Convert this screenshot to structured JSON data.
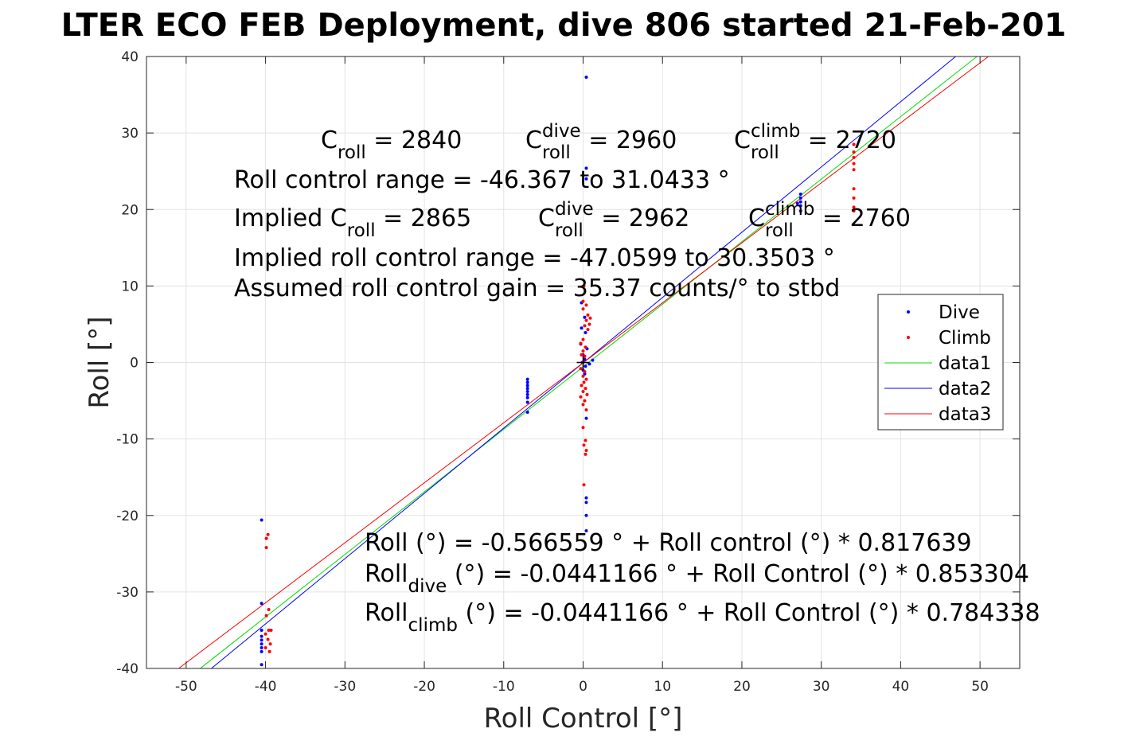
{
  "chart_data": {
    "type": "scatter",
    "title": "LTER ECO FEB Deployment, dive 806 started 21-Feb-201",
    "xlabel": "Roll Control [°]",
    "ylabel": "Roll [°]",
    "xlim": [
      -55,
      55
    ],
    "ylim": [
      -40,
      40
    ],
    "xticks": [
      -50,
      -40,
      -30,
      -20,
      -10,
      0,
      10,
      20,
      30,
      40,
      50
    ],
    "yticks": [
      -40,
      -30,
      -20,
      -10,
      0,
      10,
      20,
      30,
      40
    ],
    "grid": true,
    "legend_position": "right",
    "series": [
      {
        "name": "Dive",
        "kind": "points",
        "color": "#0000ff",
        "points": [
          [
            -40.5,
            -20.6
          ],
          [
            -40.5,
            -31.5
          ],
          [
            -40.5,
            -35.0
          ],
          [
            -40.5,
            -35.8
          ],
          [
            -40.5,
            -36.3
          ],
          [
            -40.5,
            -36.8
          ],
          [
            -40.5,
            -37.3
          ],
          [
            -40.5,
            -37.8
          ],
          [
            -40.5,
            -39.5
          ],
          [
            -7.0,
            -2.2
          ],
          [
            -7.0,
            -2.6
          ],
          [
            -7.0,
            -3.0
          ],
          [
            -7.0,
            -3.4
          ],
          [
            -7.0,
            -3.8
          ],
          [
            -7.0,
            -4.2
          ],
          [
            -7.0,
            -4.6
          ],
          [
            -7.0,
            -5.2
          ],
          [
            -7.0,
            -6.5
          ],
          [
            0.4,
            37.3
          ],
          [
            0.4,
            25.4
          ],
          [
            0.4,
            24.0
          ],
          [
            -0.2,
            7.8
          ],
          [
            0.2,
            5.9
          ],
          [
            -0.2,
            4.5
          ],
          [
            0.3,
            3.9
          ],
          [
            -0.3,
            2.4
          ],
          [
            0.5,
            1.8
          ],
          [
            0.0,
            1.0
          ],
          [
            0.2,
            0.4
          ],
          [
            -0.1,
            0.0
          ],
          [
            0.3,
            -0.5
          ],
          [
            0.0,
            -1.0
          ],
          [
            0.2,
            -1.5
          ],
          [
            0.4,
            -7.3
          ],
          [
            0.4,
            -17.7
          ],
          [
            0.4,
            -18.3
          ],
          [
            0.4,
            -20.0
          ],
          [
            0.4,
            -22.0
          ],
          [
            1.2,
            0.3
          ],
          [
            0.8,
            -0.2
          ],
          [
            27.4,
            22.0
          ],
          [
            27.4,
            21.5
          ],
          [
            27.4,
            21.0
          ],
          [
            27.0,
            20.8
          ],
          [
            27.4,
            20.5
          ],
          [
            27.4,
            19.8
          ]
        ]
      },
      {
        "name": "Climb",
        "kind": "points",
        "color": "#ff0000",
        "points": [
          [
            -39.7,
            -22.5
          ],
          [
            -39.9,
            -23.0
          ],
          [
            -39.9,
            -24.2
          ],
          [
            -39.6,
            -32.3
          ],
          [
            -39.9,
            -33.1
          ],
          [
            -39.6,
            -35.0
          ],
          [
            -39.3,
            -35.0
          ],
          [
            -40.0,
            -35.5
          ],
          [
            -39.7,
            -36.2
          ],
          [
            -39.4,
            -36.8
          ],
          [
            -40.0,
            -37.3
          ],
          [
            -39.5,
            -37.8
          ],
          [
            0.1,
            10.0
          ],
          [
            0.0,
            8.0
          ],
          [
            0.4,
            7.5
          ],
          [
            0.0,
            7.0
          ],
          [
            0.6,
            6.2
          ],
          [
            0.9,
            5.8
          ],
          [
            0.4,
            5.5
          ],
          [
            0.8,
            5.0
          ],
          [
            0.2,
            4.8
          ],
          [
            0.6,
            4.3
          ],
          [
            0.0,
            3.0
          ],
          [
            -0.3,
            2.5
          ],
          [
            0.3,
            2.0
          ],
          [
            0.0,
            1.5
          ],
          [
            -0.2,
            1.0
          ],
          [
            0.2,
            0.8
          ],
          [
            0.0,
            0.0
          ],
          [
            -0.3,
            -0.8
          ],
          [
            0.2,
            -1.2
          ],
          [
            0.0,
            -1.8
          ],
          [
            0.4,
            -2.2
          ],
          [
            0.1,
            -2.6
          ],
          [
            -0.2,
            -3.0
          ],
          [
            0.3,
            -3.4
          ],
          [
            0.0,
            -3.8
          ],
          [
            0.5,
            -4.2
          ],
          [
            -0.3,
            -4.5
          ],
          [
            0.2,
            -5.0
          ],
          [
            0.0,
            -5.5
          ],
          [
            0.4,
            -6.2
          ],
          [
            0.0,
            -8.5
          ],
          [
            0.3,
            -10.2
          ],
          [
            0.1,
            -10.8
          ],
          [
            0.4,
            -11.5
          ],
          [
            0.3,
            -12.0
          ],
          [
            0.1,
            -16.0
          ],
          [
            34.1,
            28.5
          ],
          [
            34.1,
            27.5
          ],
          [
            34.1,
            26.8
          ],
          [
            34.1,
            26.0
          ],
          [
            34.1,
            25.2
          ],
          [
            34.1,
            22.7
          ],
          [
            34.1,
            21.5
          ],
          [
            34.1,
            20.3
          ],
          [
            34.1,
            19.8
          ]
        ]
      },
      {
        "name": "data1",
        "kind": "line",
        "color": "#00dd00",
        "intercept": -0.566559,
        "slope": 0.817639
      },
      {
        "name": "data2",
        "kind": "line",
        "color": "#0000ff",
        "intercept": -0.0441166,
        "slope": 0.853304
      },
      {
        "name": "data3",
        "kind": "line",
        "color": "#ff0000",
        "intercept": -0.0441166,
        "slope": 0.784338
      }
    ],
    "annotations": [
      {
        "parts": [
          {
            "t": "C"
          },
          {
            "t": "roll",
            "sub": true
          },
          {
            "t": " = 2840"
          }
        ]
      },
      {
        "parts": [
          {
            "t": "C"
          },
          {
            "t": "dive",
            "sup": true
          },
          {
            "t": "roll",
            "sub": true
          },
          {
            "t": " = 2960"
          }
        ]
      },
      {
        "parts": [
          {
            "t": "C"
          },
          {
            "t": "climb",
            "sup": true
          },
          {
            "t": "roll",
            "sub": true
          },
          {
            "t": " = 2720"
          }
        ]
      },
      {
        "parts": [
          {
            "t": "Roll control range = -46.367 to 31.0433 °"
          }
        ]
      },
      {
        "parts": [
          {
            "t": "Implied C"
          },
          {
            "t": "roll",
            "sub": true
          },
          {
            "t": " = 2865"
          }
        ]
      },
      {
        "parts": [
          {
            "t": "C"
          },
          {
            "t": "dive",
            "sup": true
          },
          {
            "t": "roll",
            "sub": true
          },
          {
            "t": " = 2962"
          }
        ]
      },
      {
        "parts": [
          {
            "t": "C"
          },
          {
            "t": "climb",
            "sup": true
          },
          {
            "t": "roll",
            "sub": true
          },
          {
            "t": " = 2760"
          }
        ]
      },
      {
        "parts": [
          {
            "t": "Implied roll control range = -47.0599 to 30.3503 °"
          }
        ]
      },
      {
        "parts": [
          {
            "t": "Assumed roll control gain = 35.37 counts/° to stbd"
          }
        ]
      },
      {
        "parts": [
          {
            "t": "Roll (°) = -0.566559 ° + Roll control (°) * 0.817639"
          }
        ]
      },
      {
        "parts": [
          {
            "t": "Roll"
          },
          {
            "t": "dive",
            "sub": true
          },
          {
            "t": " (°) = -0.0441166 ° + Roll Control (°) * 0.853304"
          }
        ]
      },
      {
        "parts": [
          {
            "t": "Roll"
          },
          {
            "t": "climb",
            "sub": true
          },
          {
            "t": " (°) = -0.0441166 ° + Roll Control (°) * 0.784338"
          }
        ]
      }
    ]
  }
}
